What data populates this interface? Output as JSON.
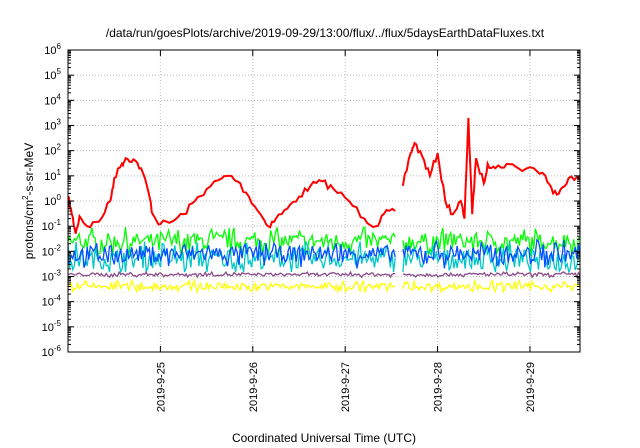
{
  "chart_data": {
    "type": "line",
    "title": "/data/run/goesPlots/archive/2019-09-29/13:00/flux/../flux/5daysEarthDataFluxes.txt",
    "xlabel": "Coordinated Universal Time (UTC)",
    "ylabel": {
      "prefix": "protons/cm",
      "sup": "2",
      "suffix": "-s-sr-MeV"
    },
    "yscale": "log",
    "ylim": [
      -6,
      6
    ],
    "y_tick_exponents": [
      -6,
      -5,
      -4,
      -3,
      -2,
      -1,
      0,
      1,
      2,
      3,
      4,
      5,
      6
    ],
    "y_tick_base": "10",
    "xlim": [
      "2019-09-24 00:00",
      "2019-09-29 13:00"
    ],
    "x_ticks": [
      "2019-9-25",
      "2019-9-26",
      "2019-9-27",
      "2019-9-28",
      "2019-9-29"
    ],
    "grid": true,
    "data_gap": [
      "2019-09-27 13:00",
      "2019-09-27 15:00"
    ],
    "series": [
      {
        "color": "#ff0000",
        "points": [
          [
            "2019-09-24 00:00",
            1.5
          ],
          [
            "2019-09-24 01:00",
            0.3
          ],
          [
            "2019-09-24 02:00",
            0.05
          ],
          [
            "2019-09-24 03:00",
            0.25
          ],
          [
            "2019-09-24 05:00",
            0.1
          ],
          [
            "2019-09-24 08:00",
            0.15
          ],
          [
            "2019-09-24 11:00",
            1.0
          ],
          [
            "2019-09-24 12:00",
            8
          ],
          [
            "2019-09-24 14:00",
            30
          ],
          [
            "2019-09-24 15:00",
            50
          ],
          [
            "2019-09-24 17:00",
            45
          ],
          [
            "2019-09-24 19:00",
            20
          ],
          [
            "2019-09-24 21:00",
            2
          ],
          [
            "2019-09-24 22:00",
            0.3
          ],
          [
            "2019-09-25 00:00",
            0.12
          ],
          [
            "2019-09-25 03:00",
            0.15
          ],
          [
            "2019-09-25 06:00",
            0.3
          ],
          [
            "2019-09-25 09:00",
            1.0
          ],
          [
            "2019-09-25 12:00",
            3
          ],
          [
            "2019-09-25 16:00",
            8
          ],
          [
            "2019-09-25 18:00",
            10
          ],
          [
            "2019-09-25 20:00",
            6
          ],
          [
            "2019-09-25 23:00",
            1.5
          ],
          [
            "2019-09-26 02:00",
            0.3
          ],
          [
            "2019-09-26 04:00",
            0.1
          ],
          [
            "2019-09-26 06:00",
            0.2
          ],
          [
            "2019-09-26 09:00",
            0.5
          ],
          [
            "2019-09-26 12:00",
            1.5
          ],
          [
            "2019-09-26 15:00",
            4
          ],
          [
            "2019-09-26 18:00",
            6
          ],
          [
            "2019-09-26 21:00",
            3
          ],
          [
            "2019-09-27 01:00",
            1.0
          ],
          [
            "2019-09-27 05:00",
            0.2
          ],
          [
            "2019-09-27 08:00",
            0.1
          ],
          [
            "2019-09-27 10:00",
            0.3
          ],
          [
            "2019-09-27 13:00",
            0.4
          ],
          [
            "2019-09-27 15:00",
            4
          ],
          [
            "2019-09-27 17:00",
            80
          ],
          [
            "2019-09-27 18:00",
            200
          ],
          [
            "2019-09-27 20:00",
            60
          ],
          [
            "2019-09-27 22:00",
            10
          ],
          [
            "2019-09-28 00:00",
            80
          ],
          [
            "2019-09-28 02:00",
            1.0
          ],
          [
            "2019-09-28 04:00",
            0.3
          ],
          [
            "2019-09-28 06:00",
            1.0
          ],
          [
            "2019-09-28 07:00",
            0.2
          ],
          [
            "2019-09-28 08:00",
            2000
          ],
          [
            "2019-09-28 09:00",
            0.3
          ],
          [
            "2019-09-28 10:00",
            50
          ],
          [
            "2019-09-28 12:00",
            5
          ],
          [
            "2019-09-28 13:00",
            30
          ],
          [
            "2019-09-28 15:00",
            20
          ],
          [
            "2019-09-28 18:00",
            30
          ],
          [
            "2019-09-28 21:00",
            20
          ],
          [
            "2019-09-29 01:00",
            20
          ],
          [
            "2019-09-29 04:00",
            10
          ],
          [
            "2019-09-29 06:00",
            2
          ],
          [
            "2019-09-29 08:00",
            3
          ],
          [
            "2019-09-29 10:00",
            8
          ],
          [
            "2019-09-29 13:00",
            7
          ]
        ]
      },
      {
        "color": "#00ff00",
        "baseline": 0.025,
        "range": [
          0.006,
          0.09
        ]
      },
      {
        "color": "#00c8c8",
        "baseline": 0.005,
        "range": [
          0.0015,
          0.04
        ]
      },
      {
        "color": "#0050ff",
        "baseline": 0.008,
        "range": [
          0.002,
          0.03
        ]
      },
      {
        "color": "#8b4a8b",
        "baseline": 0.0012,
        "range": [
          0.0009,
          0.0015
        ]
      },
      {
        "color": "#ffff00",
        "baseline": 0.0004,
        "range": [
          0.00025,
          0.0008
        ]
      }
    ]
  }
}
